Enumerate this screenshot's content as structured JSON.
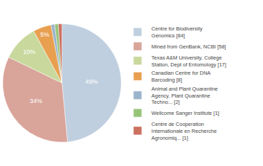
{
  "chart_data": {
    "type": "pie",
    "categories": [
      "Centre for Biodiversity\nGenomics [84]",
      "Mined from GenBank, NCBI [58]",
      "Texas A&M University, College\nStation, Dept of Entomology [17]",
      "Canadian Centre for DNA\nBarcoding [8]",
      "Animal and Plant Quarantine\nAgency, Plant Quarantine\nTechno... [2]",
      "Wellcome Sanger Institute [1]",
      "Centre de Cooperation\nInternationale en Recherche\nAgronomiq... [1]"
    ],
    "values": [
      49,
      34,
      10,
      5,
      1,
      1,
      1
    ],
    "value_labels": [
      "49%",
      "34%",
      "10%",
      "5%",
      null,
      null,
      null
    ],
    "data_labels": true,
    "colors": [
      "#bfcfdf",
      "#d9a49a",
      "#c9d99e",
      "#e8a050",
      "#9ab4cc",
      "#98c47a",
      "#cc7060"
    ],
    "legend": "right"
  }
}
